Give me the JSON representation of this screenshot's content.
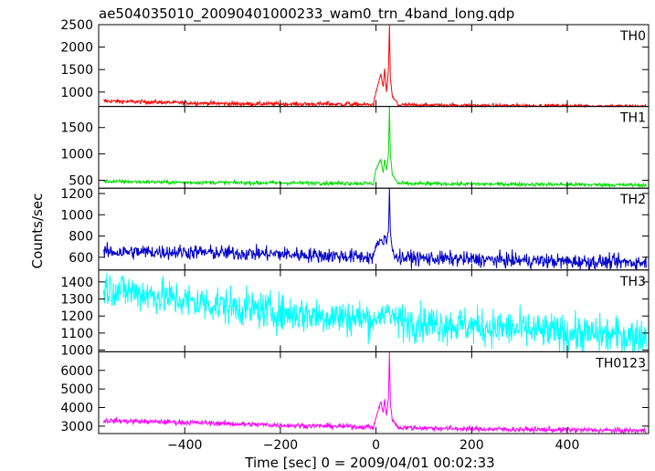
{
  "chart_data": {
    "type": "line",
    "title": "ae504035010_20090401000233_wam0_trn_4band_long.qdp",
    "xlabel": "Time [sec] 0 = 2009/04/01 00:02:33",
    "ylabel": "Counts/sec",
    "xlim": [
      -580,
      570
    ],
    "x_ticks": [
      -400,
      -200,
      0,
      200,
      400
    ],
    "grid": false,
    "panels": [
      {
        "name": "TH0",
        "color": "#ff0000",
        "ylim": [
          680,
          2500
        ],
        "y_ticks": [
          1000,
          1500,
          2000,
          2500
        ],
        "profile": [
          [
            -570,
            800
          ],
          [
            -400,
            760
          ],
          [
            -300,
            740
          ],
          [
            -100,
            730
          ],
          [
            0,
            720
          ],
          [
            200,
            700
          ],
          [
            400,
            690
          ],
          [
            565,
            680
          ]
        ],
        "noise": 22,
        "bumps": [
          [
            -100,
            790
          ],
          [
            -60,
            780
          ]
        ],
        "burst": [
          [
            -5,
            760
          ],
          [
            0,
            1000
          ],
          [
            10,
            1400
          ],
          [
            15,
            1100
          ],
          [
            18,
            1500
          ],
          [
            22,
            1000
          ],
          [
            26,
            1500
          ],
          [
            28,
            2500
          ],
          [
            30,
            1300
          ],
          [
            34,
            900
          ],
          [
            45,
            760
          ]
        ]
      },
      {
        "name": "TH1",
        "color": "#00dd00",
        "ylim": [
          350,
          1900
        ],
        "y_ticks": [
          500,
          1000,
          1500
        ],
        "profile": [
          [
            -570,
            480
          ],
          [
            -400,
            460
          ],
          [
            -200,
            450
          ],
          [
            0,
            440
          ],
          [
            200,
            430
          ],
          [
            400,
            420
          ],
          [
            565,
            410
          ]
        ],
        "noise": 18,
        "bumps": [
          [
            -120,
            460
          ],
          [
            -60,
            470
          ]
        ],
        "burst": [
          [
            -5,
            470
          ],
          [
            0,
            700
          ],
          [
            10,
            900
          ],
          [
            15,
            650
          ],
          [
            18,
            900
          ],
          [
            22,
            700
          ],
          [
            26,
            1000
          ],
          [
            28,
            1900
          ],
          [
            30,
            1000
          ],
          [
            34,
            600
          ],
          [
            45,
            460
          ]
        ]
      },
      {
        "name": "TH2",
        "color": "#0000cc",
        "ylim": [
          480,
          1250
        ],
        "y_ticks": [
          600,
          800,
          1000,
          1200
        ],
        "profile": [
          [
            -570,
            650
          ],
          [
            -400,
            650
          ],
          [
            -200,
            630
          ],
          [
            0,
            600
          ],
          [
            200,
            580
          ],
          [
            400,
            560
          ],
          [
            565,
            550
          ]
        ],
        "noise": 35,
        "bumps": [],
        "burst": [
          [
            -5,
            620
          ],
          [
            0,
            700
          ],
          [
            10,
            780
          ],
          [
            15,
            720
          ],
          [
            18,
            800
          ],
          [
            22,
            740
          ],
          [
            26,
            850
          ],
          [
            28,
            1230
          ],
          [
            30,
            850
          ],
          [
            34,
            650
          ],
          [
            45,
            600
          ]
        ]
      },
      {
        "name": "TH3",
        "color": "#00ffff",
        "ylim": [
          990,
          1470
        ],
        "y_ticks": [
          1000,
          1100,
          1200,
          1300,
          1400
        ],
        "profile": [
          [
            -570,
            1370
          ],
          [
            -400,
            1290
          ],
          [
            -200,
            1220
          ],
          [
            0,
            1180
          ],
          [
            200,
            1140
          ],
          [
            400,
            1100
          ],
          [
            565,
            1080
          ]
        ],
        "noise": 55,
        "bumps": [],
        "burst": [
          [
            -5,
            1180
          ],
          [
            0,
            1200
          ],
          [
            10,
            1200
          ],
          [
            26,
            1230
          ],
          [
            28,
            1260
          ],
          [
            30,
            1200
          ],
          [
            45,
            1180
          ]
        ]
      },
      {
        "name": "TH0123",
        "color": "#ff00ff",
        "ylim": [
          2600,
          7000
        ],
        "y_ticks": [
          3000,
          4000,
          5000,
          6000
        ],
        "profile": [
          [
            -570,
            3300
          ],
          [
            -400,
            3200
          ],
          [
            -200,
            3050
          ],
          [
            0,
            2950
          ],
          [
            200,
            2850
          ],
          [
            400,
            2800
          ],
          [
            565,
            2750
          ]
        ],
        "noise": 70,
        "bumps": [],
        "burst": [
          [
            -5,
            3000
          ],
          [
            0,
            3500
          ],
          [
            10,
            4300
          ],
          [
            15,
            3700
          ],
          [
            18,
            4400
          ],
          [
            22,
            3600
          ],
          [
            26,
            4500
          ],
          [
            28,
            7000
          ],
          [
            30,
            4300
          ],
          [
            34,
            3300
          ],
          [
            45,
            3000
          ]
        ]
      }
    ]
  }
}
